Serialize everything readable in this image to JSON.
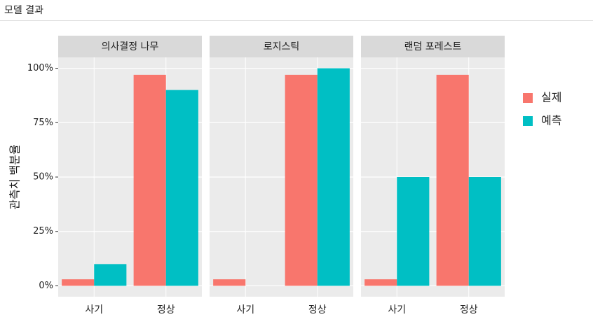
{
  "header": {
    "title": "모델 결과"
  },
  "chart_data": {
    "type": "bar",
    "y_label": "관측치 백분율",
    "ylim": [
      -5,
      105
    ],
    "yticks": [
      {
        "value": 0,
        "label": "0%"
      },
      {
        "value": 25,
        "label": "25%"
      },
      {
        "value": 50,
        "label": "50%"
      },
      {
        "value": 75,
        "label": "75%"
      },
      {
        "value": 100,
        "label": "100%"
      }
    ],
    "grid": true,
    "legend": [
      {
        "name": "실제",
        "color": "#F8766D"
      },
      {
        "name": "예측",
        "color": "#00BFC4"
      }
    ],
    "facets": [
      {
        "title": "의사결정 나무",
        "categories": [
          "사기",
          "정상"
        ],
        "series": [
          {
            "values": [
              3,
              97
            ]
          },
          {
            "values": [
              10,
              90
            ]
          }
        ]
      },
      {
        "title": "로지스틱",
        "categories": [
          "사기",
          "정상"
        ],
        "series": [
          {
            "values": [
              3,
              97
            ]
          },
          {
            "values": [
              0,
              100
            ]
          }
        ]
      },
      {
        "title": "랜덤 포레스트",
        "categories": [
          "사기",
          "정상"
        ],
        "series": [
          {
            "values": [
              3,
              97
            ]
          },
          {
            "values": [
              50,
              50
            ]
          }
        ]
      }
    ]
  }
}
